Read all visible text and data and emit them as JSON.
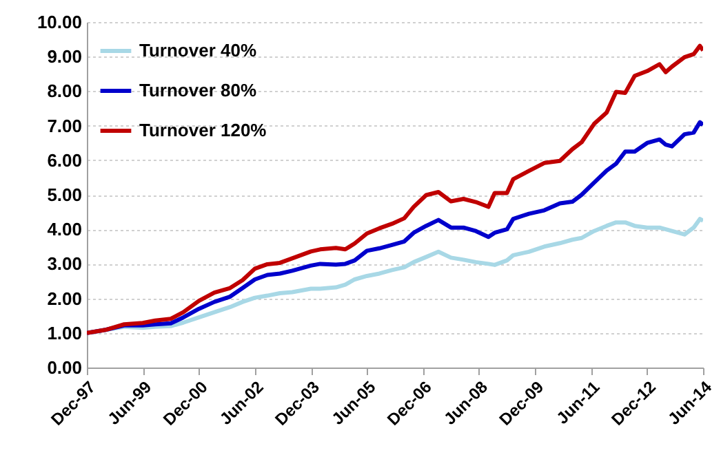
{
  "chart_data": {
    "type": "line",
    "x": [
      "1997-12",
      "1998-06",
      "1998-12",
      "1999-06",
      "1999-10",
      "2000-03",
      "2000-07",
      "2000-12",
      "2001-05",
      "2001-10",
      "2002-02",
      "2002-06",
      "2002-10",
      "2003-02",
      "2003-06",
      "2003-12",
      "2004-03",
      "2004-08",
      "2004-11",
      "2005-02",
      "2005-06",
      "2005-10",
      "2006-02",
      "2006-06",
      "2006-09",
      "2007-01",
      "2007-05",
      "2007-09",
      "2008-01",
      "2008-05",
      "2008-09",
      "2008-11",
      "2009-03",
      "2009-05",
      "2009-10",
      "2010-03",
      "2010-08",
      "2010-12",
      "2011-03",
      "2011-07",
      "2011-11",
      "2012-02",
      "2012-05",
      "2012-08",
      "2012-12",
      "2013-04",
      "2013-06",
      "2013-08",
      "2013-12",
      "2014-03",
      "2014-05",
      "2014-06"
    ],
    "series": [
      {
        "name": "Turnover 40%",
        "color": "#a8d8e6",
        "values": [
          1.0,
          1.09,
          1.18,
          1.15,
          1.18,
          1.2,
          1.3,
          1.45,
          1.6,
          1.75,
          1.9,
          2.02,
          2.08,
          2.15,
          2.18,
          2.28,
          2.28,
          2.32,
          2.4,
          2.55,
          2.65,
          2.72,
          2.82,
          2.9,
          3.05,
          3.2,
          3.35,
          3.18,
          3.12,
          3.05,
          3.0,
          2.97,
          3.1,
          3.25,
          3.35,
          3.5,
          3.6,
          3.7,
          3.75,
          3.95,
          4.1,
          4.2,
          4.2,
          4.1,
          4.05,
          4.05,
          4.0,
          3.95,
          3.85,
          4.05,
          4.3,
          4.25
        ]
      },
      {
        "name": "Turnover 80%",
        "color": "#0000cc",
        "values": [
          1.0,
          1.09,
          1.22,
          1.22,
          1.25,
          1.28,
          1.45,
          1.7,
          1.9,
          2.05,
          2.3,
          2.55,
          2.68,
          2.72,
          2.8,
          2.95,
          3.0,
          2.98,
          3.0,
          3.1,
          3.38,
          3.45,
          3.55,
          3.65,
          3.9,
          4.1,
          4.27,
          4.05,
          4.05,
          3.95,
          3.78,
          3.9,
          4.0,
          4.3,
          4.45,
          4.55,
          4.75,
          4.8,
          5.0,
          5.35,
          5.7,
          5.9,
          6.25,
          6.25,
          6.5,
          6.6,
          6.45,
          6.4,
          6.75,
          6.8,
          7.1,
          7.02
        ]
      },
      {
        "name": "Turnover 120%",
        "color": "#c00000",
        "values": [
          1.0,
          1.09,
          1.25,
          1.29,
          1.36,
          1.41,
          1.6,
          1.93,
          2.17,
          2.3,
          2.53,
          2.86,
          2.99,
          3.03,
          3.16,
          3.36,
          3.42,
          3.46,
          3.42,
          3.59,
          3.88,
          4.03,
          4.16,
          4.32,
          4.65,
          4.99,
          5.08,
          4.81,
          4.88,
          4.79,
          4.65,
          5.05,
          5.05,
          5.45,
          5.69,
          5.92,
          5.98,
          6.32,
          6.52,
          7.05,
          7.38,
          7.98,
          7.95,
          8.44,
          8.58,
          8.78,
          8.55,
          8.71,
          8.98,
          9.07,
          9.31,
          9.18
        ]
      }
    ],
    "xlim": [
      "1997-12",
      "2014-06"
    ],
    "xticks": [
      {
        "value": "1997-12",
        "label": "Dec-97"
      },
      {
        "value": "1999-06",
        "label": "Jun-99"
      },
      {
        "value": "2000-12",
        "label": "Dec-00"
      },
      {
        "value": "2002-06",
        "label": "Jun-02"
      },
      {
        "value": "2003-12",
        "label": "Dec-03"
      },
      {
        "value": "2005-06",
        "label": "Jun-05"
      },
      {
        "value": "2006-12",
        "label": "Dec-06"
      },
      {
        "value": "2008-06",
        "label": "Jun-08"
      },
      {
        "value": "2009-12",
        "label": "Dec-09"
      },
      {
        "value": "2011-06",
        "label": "Jun-11"
      },
      {
        "value": "2012-12",
        "label": "Dec-12"
      },
      {
        "value": "2014-06",
        "label": "Jun-14"
      }
    ],
    "ylim": [
      0,
      10
    ],
    "yticks": [
      {
        "value": 0,
        "label": "0.00"
      },
      {
        "value": 1,
        "label": "1.00"
      },
      {
        "value": 2,
        "label": "2.00"
      },
      {
        "value": 3,
        "label": "3.00"
      },
      {
        "value": 4,
        "label": "4.00"
      },
      {
        "value": 5,
        "label": "5.00"
      },
      {
        "value": 6,
        "label": "6.00"
      },
      {
        "value": 7,
        "label": "7.00"
      },
      {
        "value": 8,
        "label": "8.00"
      },
      {
        "value": 9,
        "label": "9.00"
      },
      {
        "value": 10,
        "label": "10.00"
      }
    ],
    "grid": "y",
    "legend": "top left",
    "line_style": "solid"
  }
}
